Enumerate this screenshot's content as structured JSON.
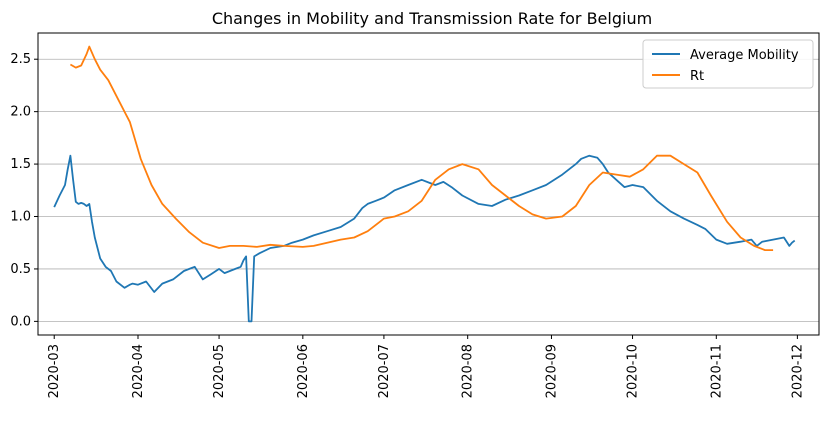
{
  "chart_data": {
    "type": "line",
    "title": "Changes in Mobility and Transmission Rate for Belgium",
    "xlabel": "",
    "ylabel": "",
    "x_ticks": [
      "2020-03",
      "2020-04",
      "2020-05",
      "2020-06",
      "2020-07",
      "2020-08",
      "2020-09",
      "2020-10",
      "2020-11",
      "2020-12"
    ],
    "y_ticks": [
      "0.0",
      "0.5",
      "1.0",
      "1.5",
      "2.0",
      "2.5"
    ],
    "xlim": [
      "2020-02-24",
      "2020-12-09"
    ],
    "ylim": [
      -0.13,
      2.75
    ],
    "grid": "horizontal",
    "legend_position": "top-right",
    "series": [
      {
        "name": "Average Mobility",
        "color": "#1f77b4",
        "x": [
          "2020-03-01",
          "2020-03-03",
          "2020-03-05",
          "2020-03-06",
          "2020-03-07",
          "2020-03-08",
          "2020-03-09",
          "2020-03-10",
          "2020-03-11",
          "2020-03-12",
          "2020-03-13",
          "2020-03-14",
          "2020-03-15",
          "2020-03-16",
          "2020-03-17",
          "2020-03-18",
          "2020-03-20",
          "2020-03-22",
          "2020-03-24",
          "2020-03-27",
          "2020-03-29",
          "2020-03-30",
          "2020-04-01",
          "2020-04-04",
          "2020-04-07",
          "2020-04-10",
          "2020-04-12",
          "2020-04-14",
          "2020-04-18",
          "2020-04-20",
          "2020-04-22",
          "2020-04-25",
          "2020-04-28",
          "2020-05-01",
          "2020-05-03",
          "2020-05-05",
          "2020-05-07",
          "2020-05-09",
          "2020-05-10",
          "2020-05-11",
          "2020-05-12",
          "2020-05-13",
          "2020-05-14",
          "2020-05-16",
          "2020-05-20",
          "2020-05-25",
          "2020-05-28",
          "2020-06-01",
          "2020-06-05",
          "2020-06-10",
          "2020-06-15",
          "2020-06-20",
          "2020-06-23",
          "2020-06-25",
          "2020-06-28",
          "2020-07-01",
          "2020-07-05",
          "2020-07-10",
          "2020-07-15",
          "2020-07-18",
          "2020-07-20",
          "2020-07-23",
          "2020-07-26",
          "2020-07-30",
          "2020-08-05",
          "2020-08-10",
          "2020-08-15",
          "2020-08-20",
          "2020-08-25",
          "2020-08-30",
          "2020-09-05",
          "2020-09-10",
          "2020-09-12",
          "2020-09-15",
          "2020-09-18",
          "2020-09-20",
          "2020-09-22",
          "2020-09-25",
          "2020-09-28",
          "2020-10-01",
          "2020-10-05",
          "2020-10-10",
          "2020-10-15",
          "2020-10-20",
          "2020-10-25",
          "2020-10-28",
          "2020-11-01",
          "2020-11-05",
          "2020-11-10",
          "2020-11-14",
          "2020-11-16",
          "2020-11-18",
          "2020-11-22",
          "2020-11-26",
          "2020-11-28",
          "2020-11-29",
          "2020-11-30"
        ],
        "values": [
          1.09,
          1.2,
          1.3,
          1.45,
          1.58,
          1.35,
          1.14,
          1.12,
          1.13,
          1.12,
          1.1,
          1.12,
          0.95,
          0.8,
          0.7,
          0.6,
          0.52,
          0.48,
          0.38,
          0.32,
          0.35,
          0.36,
          0.35,
          0.38,
          0.28,
          0.36,
          0.38,
          0.4,
          0.48,
          0.5,
          0.52,
          0.4,
          0.45,
          0.5,
          0.46,
          0.48,
          0.5,
          0.52,
          0.58,
          0.62,
          0.0,
          0.0,
          0.62,
          0.65,
          0.7,
          0.72,
          0.75,
          0.78,
          0.82,
          0.86,
          0.9,
          0.98,
          1.08,
          1.12,
          1.15,
          1.18,
          1.25,
          1.3,
          1.35,
          1.32,
          1.3,
          1.33,
          1.28,
          1.2,
          1.12,
          1.1,
          1.16,
          1.2,
          1.25,
          1.3,
          1.4,
          1.5,
          1.55,
          1.58,
          1.56,
          1.5,
          1.42,
          1.35,
          1.28,
          1.3,
          1.28,
          1.15,
          1.05,
          0.98,
          0.92,
          0.88,
          0.78,
          0.74,
          0.76,
          0.78,
          0.72,
          0.76,
          0.78,
          0.8,
          0.72,
          0.75,
          0.77
        ]
      },
      {
        "name": "Rt",
        "color": "#ff7f0e",
        "x": [
          "2020-03-07",
          "2020-03-09",
          "2020-03-11",
          "2020-03-13",
          "2020-03-14",
          "2020-03-16",
          "2020-03-18",
          "2020-03-21",
          "2020-03-25",
          "2020-03-29",
          "2020-04-02",
          "2020-04-06",
          "2020-04-10",
          "2020-04-15",
          "2020-04-20",
          "2020-04-25",
          "2020-05-01",
          "2020-05-05",
          "2020-05-10",
          "2020-05-15",
          "2020-05-20",
          "2020-05-25",
          "2020-06-01",
          "2020-06-05",
          "2020-06-10",
          "2020-06-15",
          "2020-06-20",
          "2020-06-25",
          "2020-07-01",
          "2020-07-05",
          "2020-07-10",
          "2020-07-15",
          "2020-07-20",
          "2020-07-25",
          "2020-07-30",
          "2020-08-05",
          "2020-08-10",
          "2020-08-15",
          "2020-08-20",
          "2020-08-25",
          "2020-08-30",
          "2020-09-05",
          "2020-09-10",
          "2020-09-15",
          "2020-09-20",
          "2020-09-25",
          "2020-09-30",
          "2020-10-05",
          "2020-10-10",
          "2020-10-15",
          "2020-10-20",
          "2020-10-25",
          "2020-10-30",
          "2020-11-05",
          "2020-11-10",
          "2020-11-15",
          "2020-11-19",
          "2020-11-22"
        ],
        "values": [
          2.45,
          2.42,
          2.44,
          2.55,
          2.62,
          2.5,
          2.4,
          2.3,
          2.1,
          1.9,
          1.55,
          1.3,
          1.12,
          0.98,
          0.85,
          0.75,
          0.7,
          0.72,
          0.72,
          0.71,
          0.73,
          0.72,
          0.71,
          0.72,
          0.75,
          0.78,
          0.8,
          0.86,
          0.98,
          1.0,
          1.05,
          1.15,
          1.35,
          1.45,
          1.5,
          1.45,
          1.3,
          1.2,
          1.1,
          1.02,
          0.98,
          1.0,
          1.1,
          1.3,
          1.42,
          1.4,
          1.38,
          1.45,
          1.58,
          1.58,
          1.5,
          1.42,
          1.2,
          0.95,
          0.8,
          0.72,
          0.68,
          0.68
        ]
      }
    ]
  }
}
